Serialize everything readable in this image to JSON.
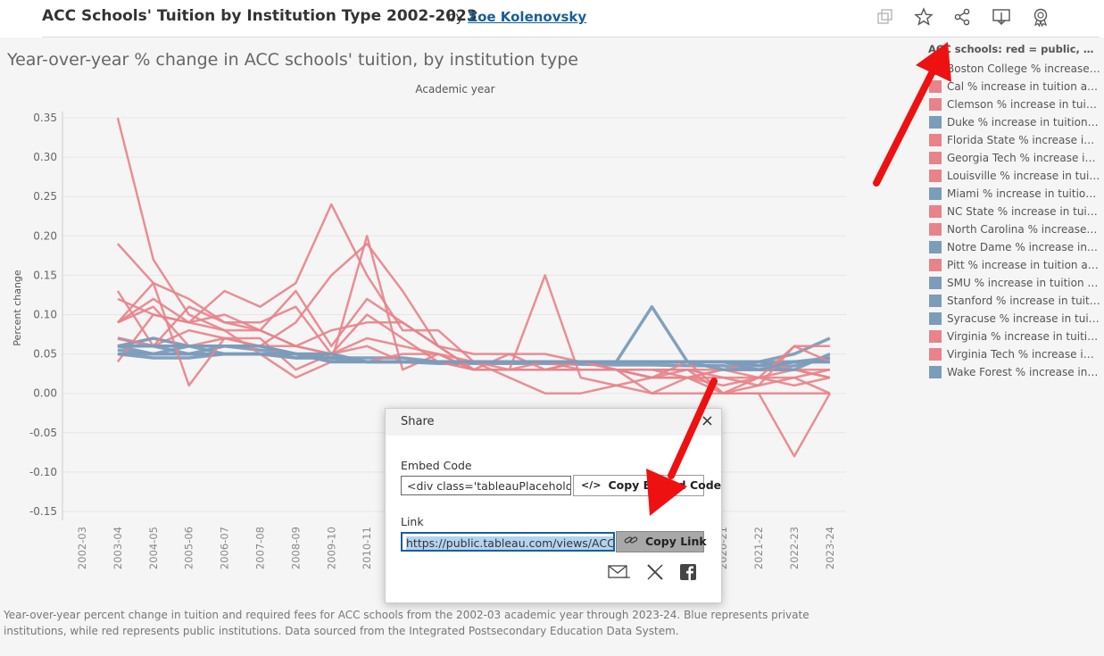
{
  "header": {
    "title": "ACC Schools' Tuition by Institution Type 2002-2023",
    "by": "by",
    "author": "Zoe Kolenovsky"
  },
  "toolbar": {
    "icons": [
      "duplicate-icon",
      "favorite-star-icon",
      "share-icon",
      "download-icon",
      "badge-icon"
    ]
  },
  "chart_data": {
    "type": "line",
    "title": "Year-over-year % change in ACC schools' tuition, by institution type",
    "xlabel": "Academic year",
    "ylabel": "Percent change",
    "ylim": [
      -0.15,
      0.35
    ],
    "yticks": [
      "0.35",
      "0.30",
      "0.25",
      "0.20",
      "0.15",
      "0.10",
      "0.05",
      "0.00",
      "-0.05",
      "-0.10",
      "-0.15"
    ],
    "categories": [
      "2002-03",
      "2003-04",
      "2004-05",
      "2005-06",
      "2006-07",
      "2007-08",
      "2008-09",
      "2009-10",
      "2010-11",
      "2011-12",
      "2012-13",
      "2013-14",
      "2014-15",
      "2015-16",
      "2016-17",
      "2017-18",
      "2018-19",
      "2019-20",
      "2020-21",
      "2021-22",
      "2022-23",
      "2023-24"
    ],
    "colors": {
      "public": "#e8838a",
      "private": "#7b9cba"
    },
    "series": [
      {
        "name": "Boston College % increase in...",
        "type": "private",
        "values": [
          null,
          0.055,
          0.05,
          0.05,
          0.06,
          0.055,
          0.05,
          0.045,
          0.04,
          0.04,
          0.038,
          0.038,
          0.038,
          0.038,
          0.037,
          0.036,
          0.036,
          0.035,
          0.035,
          0.03,
          0.035,
          0.045
        ]
      },
      {
        "name": "Cal % increase in tuition and ...",
        "type": "public",
        "values": [
          null,
          0.35,
          0.17,
          0.1,
          0.08,
          0.05,
          0.02,
          0.04,
          0.2,
          0.03,
          0.05,
          0.03,
          0.03,
          0.03,
          0.04,
          0.03,
          0.02,
          0.02,
          0.03,
          0.04,
          0.03,
          0.02
        ]
      },
      {
        "name": "Clemson % increase in tuitio...",
        "type": "public",
        "values": [
          null,
          0.19,
          0.14,
          0.12,
          0.09,
          0.08,
          0.06,
          0.05,
          0.04,
          0.04,
          0.04,
          0.04,
          0.03,
          0.03,
          0.03,
          0.03,
          0.03,
          0.03,
          0.03,
          0.03,
          0.03,
          0.03
        ]
      },
      {
        "name": "Duke % increase in tuition a...",
        "type": "private",
        "values": [
          null,
          0.07,
          0.06,
          0.05,
          0.05,
          0.05,
          0.045,
          0.045,
          0.04,
          0.04,
          0.04,
          0.04,
          0.04,
          0.04,
          0.04,
          0.04,
          0.04,
          0.04,
          0.04,
          0.035,
          0.04,
          0.04
        ]
      },
      {
        "name": "Florida State % increase in t...",
        "type": "public",
        "values": [
          null,
          0.09,
          0.12,
          0.09,
          0.13,
          0.11,
          0.14,
          0.24,
          0.15,
          0.08,
          0.08,
          0.04,
          0.02,
          0.0,
          0.0,
          0.01,
          0.0,
          0.0,
          0.0,
          0.0,
          0.0,
          0.0
        ]
      },
      {
        "name": "Georgia Tech % increase in t...",
        "type": "public",
        "values": [
          null,
          0.13,
          0.06,
          0.08,
          0.07,
          0.06,
          0.09,
          0.15,
          0.19,
          0.13,
          0.06,
          0.03,
          0.05,
          0.03,
          0.04,
          0.03,
          0.0,
          0.02,
          0.0,
          0.01,
          0.02,
          0.0
        ]
      },
      {
        "name": "Louisville % increase in tuiti...",
        "type": "public",
        "values": [
          null,
          0.12,
          0.1,
          0.09,
          0.1,
          0.08,
          0.13,
          0.06,
          0.12,
          0.09,
          0.06,
          0.05,
          0.05,
          0.05,
          0.04,
          0.03,
          0.03,
          0.03,
          0.0,
          0.02,
          0.01,
          0.02
        ]
      },
      {
        "name": "Miami % increase in tuition ...",
        "type": "private",
        "values": [
          null,
          0.06,
          0.05,
          0.06,
          0.06,
          0.06,
          0.05,
          0.045,
          0.045,
          0.045,
          0.04,
          0.04,
          0.04,
          0.04,
          0.04,
          0.04,
          0.11,
          0.04,
          0.04,
          0.04,
          0.04,
          0.04
        ]
      },
      {
        "name": "NC State % increase in tuitio...",
        "type": "public",
        "values": [
          null,
          0.06,
          0.07,
          0.06,
          0.06,
          0.06,
          0.05,
          0.05,
          0.06,
          0.04,
          0.04,
          0.03,
          0.03,
          0.03,
          0.03,
          0.03,
          0.02,
          0.02,
          0.03,
          0.02,
          0.03,
          0.02
        ]
      },
      {
        "name": "North Carolina % increase in...",
        "type": "public",
        "values": [
          null,
          0.09,
          0.11,
          0.06,
          0.07,
          0.07,
          0.03,
          0.05,
          0.1,
          0.07,
          0.04,
          0.03,
          0.03,
          0.15,
          0.02,
          0.01,
          0.02,
          0.04,
          0.0,
          0.0,
          -0.08,
          0.0
        ]
      },
      {
        "name": "Notre Dame % increase in tu...",
        "type": "private",
        "values": [
          null,
          0.05,
          0.045,
          0.045,
          0.05,
          0.05,
          0.045,
          0.045,
          0.04,
          0.04,
          0.04,
          0.04,
          0.04,
          0.04,
          0.04,
          0.04,
          0.04,
          0.04,
          0.04,
          0.035,
          0.04,
          0.045
        ]
      },
      {
        "name": "Pitt % increase in tuition an...",
        "type": "public",
        "values": [
          null,
          0.04,
          0.1,
          0.09,
          0.08,
          0.08,
          0.06,
          0.05,
          0.04,
          0.05,
          0.05,
          0.03,
          0.03,
          0.03,
          0.03,
          0.03,
          0.02,
          0.02,
          0.02,
          0.02,
          0.02,
          0.03
        ]
      },
      {
        "name": "SMU % increase in tuition an...",
        "type": "private",
        "values": [
          null,
          0.06,
          0.06,
          0.06,
          0.05,
          0.05,
          0.05,
          0.04,
          0.04,
          0.04,
          0.04,
          0.04,
          0.04,
          0.04,
          0.04,
          0.04,
          0.04,
          0.04,
          0.04,
          0.03,
          0.03,
          0.05
        ]
      },
      {
        "name": "Stanford % increase in tuitio...",
        "type": "private",
        "values": [
          null,
          0.05,
          0.05,
          0.05,
          0.05,
          0.05,
          0.05,
          0.04,
          0.04,
          0.04,
          0.04,
          0.04,
          0.04,
          0.04,
          0.04,
          0.04,
          0.04,
          0.04,
          0.04,
          0.035,
          0.04,
          0.04
        ]
      },
      {
        "name": "Syracuse % increase in tuitio...",
        "type": "private",
        "values": [
          null,
          0.06,
          0.07,
          0.06,
          0.06,
          0.06,
          0.05,
          0.05,
          0.04,
          0.04,
          0.04,
          0.04,
          0.04,
          0.04,
          0.04,
          0.04,
          0.04,
          0.04,
          0.04,
          0.04,
          0.05,
          0.07
        ]
      },
      {
        "name": "Virginia % increase in tuitio...",
        "type": "public",
        "values": [
          null,
          0.07,
          0.06,
          0.11,
          0.09,
          0.09,
          0.11,
          0.05,
          0.07,
          0.06,
          0.05,
          0.04,
          0.04,
          0.04,
          0.04,
          0.03,
          0.03,
          0.02,
          0.01,
          0.02,
          0.06,
          0.04
        ]
      },
      {
        "name": "Virginia Tech % increase in t...",
        "type": "public",
        "values": [
          null,
          0.09,
          0.14,
          0.01,
          0.07,
          0.06,
          0.06,
          0.08,
          0.09,
          0.09,
          0.06,
          0.03,
          0.03,
          0.04,
          0.03,
          0.03,
          0.02,
          0.03,
          0.02,
          0.01,
          0.06,
          0.06
        ]
      },
      {
        "name": "Wake Forest % increase in tu...",
        "type": "private",
        "values": [
          null,
          0.06,
          0.06,
          0.06,
          0.06,
          0.06,
          0.05,
          0.05,
          0.04,
          0.04,
          0.04,
          0.04,
          0.04,
          0.04,
          0.04,
          0.04,
          0.04,
          0.04,
          0.03,
          0.03,
          0.04,
          0.04
        ]
      }
    ]
  },
  "legend": {
    "title": "ACC schools: red = public, blue = ..."
  },
  "caption": "Year-over-year percent change in tuition and required fees for ACC schools from the 2002-03 academic year through 2023-24. Blue represents private institutions, while red represents public institutions. Data sourced from the Integrated Postsecondary Education Data System.",
  "share_dialog": {
    "title": "Share",
    "close": "×",
    "embed_label": "Embed Code",
    "embed_value": "<div class='tableauPlaceholder",
    "copy_embed_label": "Copy Embed Code",
    "link_label": "Link",
    "link_value": "https://public.tableau.com/views/ACCS",
    "copy_link_label": "Copy Link",
    "share_icons": [
      "email-icon",
      "x-twitter-icon",
      "facebook-icon"
    ]
  },
  "colors": {
    "public": "#e8838a",
    "private": "#7b9cba",
    "annotation_arrow": "#ee1111",
    "author_link": "#1a5e96"
  }
}
